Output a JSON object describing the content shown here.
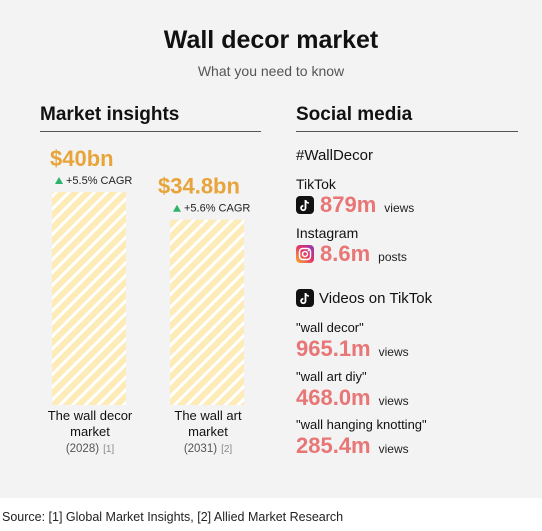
{
  "header": {
    "title": "Wall decor market",
    "subtitle": "What you need to know"
  },
  "sections": {
    "left": "Market insights",
    "right": "Social media"
  },
  "chart_data": {
    "type": "bar",
    "categories": [
      "The wall decor market",
      "The wall art market"
    ],
    "values": [
      40,
      34.8
    ],
    "value_labels": [
      "$40bn",
      "$34.8bn"
    ],
    "cagr": [
      "+5.5% CAGR",
      "+5.6% CAGR"
    ],
    "category_lines": [
      [
        "The wall decor",
        "market"
      ],
      [
        "The wall art",
        "market"
      ]
    ],
    "years": [
      "(2028)",
      "(2031)"
    ],
    "refs": [
      "[1]",
      "[2]"
    ],
    "ylim": [
      0,
      40
    ],
    "colors": {
      "bar_fill": "#fdebb8",
      "bar_stripe": "#ffffff",
      "value": "#e8a43a",
      "up_arrow": "#2bb36a"
    }
  },
  "social": {
    "hashtag": "#WallDecor",
    "platforms": [
      {
        "name": "TikTok",
        "icon": "tiktok-icon",
        "value": "879m",
        "unit": "views"
      },
      {
        "name": "Instagram",
        "icon": "instagram-icon",
        "value": "8.6m",
        "unit": "posts"
      }
    ],
    "videos_heading": "Videos on TikTok",
    "queries": [
      {
        "term": "\"wall decor\"",
        "value": "965.1m",
        "unit": "views"
      },
      {
        "term": "\"wall art diy\"",
        "value": "468.0m",
        "unit": "views"
      },
      {
        "term": "\"wall hanging knotting\"",
        "value": "285.4m",
        "unit": "views"
      }
    ],
    "accent": "#e87676"
  },
  "footer": {
    "source": "Source: [1] Global Market Insights, [2] Allied Market Research"
  }
}
